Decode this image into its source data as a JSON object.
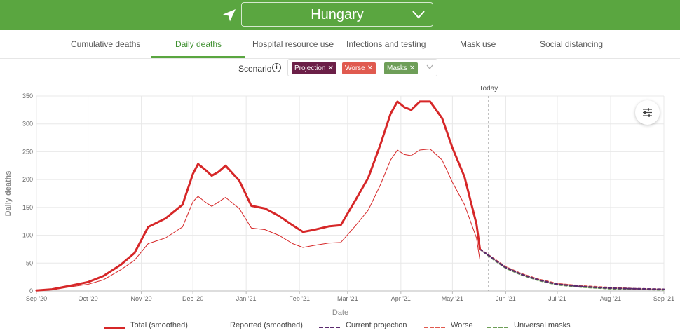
{
  "header": {
    "country": "Hungary",
    "background": "#5aa640"
  },
  "tabs": [
    {
      "label": "Cumulative deaths",
      "active": false
    },
    {
      "label": "Daily deaths",
      "active": true
    },
    {
      "label": "Hospital resource use",
      "active": false
    },
    {
      "label": "Infections and testing",
      "active": false
    },
    {
      "label": "Mask use",
      "active": false
    },
    {
      "label": "Social distancing",
      "active": false
    }
  ],
  "scenario": {
    "label": "Scenario",
    "chips": [
      {
        "label": "Projection",
        "color": "#6b1f47"
      },
      {
        "label": "Worse",
        "color": "#e05a4f"
      },
      {
        "label": "Masks",
        "color": "#6e9e58"
      }
    ]
  },
  "chart_data": {
    "type": "line",
    "xlabel": "Date",
    "ylabel": "Daily deaths",
    "ylim": [
      0,
      350
    ],
    "yticks": [
      0,
      50,
      100,
      150,
      200,
      250,
      300,
      350
    ],
    "xticks": [
      "Sep '20",
      "Oct '20",
      "Nov '20",
      "Dec '20",
      "Jan '21",
      "Feb '21",
      "Mar '21",
      "Apr '21",
      "May '21",
      "Jun '21",
      "Jul '21",
      "Aug '21",
      "Sep '21"
    ],
    "xrange": [
      "2020-09-01",
      "2021-09-01"
    ],
    "today": {
      "label": "Today",
      "date": "2021-05-22"
    },
    "grid": true,
    "legend_position": "bottom",
    "series": [
      {
        "name": "Total (smoothed)",
        "color": "#d62728",
        "style": "thick",
        "x": [
          "2020-09-01",
          "2020-09-10",
          "2020-09-20",
          "2020-10-01",
          "2020-10-10",
          "2020-10-20",
          "2020-10-28",
          "2020-11-05",
          "2020-11-15",
          "2020-11-25",
          "2020-12-01",
          "2020-12-04",
          "2020-12-08",
          "2020-12-12",
          "2020-12-16",
          "2020-12-20",
          "2020-12-28",
          "2021-01-04",
          "2021-01-12",
          "2021-01-20",
          "2021-01-28",
          "2021-02-03",
          "2021-02-10",
          "2021-02-18",
          "2021-02-25",
          "2021-03-05",
          "2021-03-13",
          "2021-03-20",
          "2021-03-26",
          "2021-03-30",
          "2021-04-03",
          "2021-04-07",
          "2021-04-12",
          "2021-04-18",
          "2021-04-25",
          "2021-05-01",
          "2021-05-08",
          "2021-05-15",
          "2021-05-17"
        ],
        "y": [
          1,
          3,
          9,
          16,
          27,
          47,
          68,
          115,
          130,
          155,
          210,
          228,
          218,
          207,
          214,
          225,
          198,
          153,
          148,
          135,
          118,
          106,
          110,
          116,
          118,
          160,
          203,
          262,
          318,
          340,
          330,
          325,
          340,
          340,
          310,
          257,
          205,
          120,
          75
        ]
      },
      {
        "name": "Reported (smoothed)",
        "color": "#d62728",
        "style": "thin",
        "x": [
          "2020-09-01",
          "2020-09-10",
          "2020-09-20",
          "2020-10-01",
          "2020-10-10",
          "2020-10-20",
          "2020-10-28",
          "2020-11-05",
          "2020-11-15",
          "2020-11-25",
          "2020-12-01",
          "2020-12-04",
          "2020-12-08",
          "2020-12-12",
          "2020-12-16",
          "2020-12-20",
          "2020-12-28",
          "2021-01-04",
          "2021-01-12",
          "2021-01-20",
          "2021-01-28",
          "2021-02-03",
          "2021-02-10",
          "2021-02-18",
          "2021-02-25",
          "2021-03-05",
          "2021-03-13",
          "2021-03-20",
          "2021-03-26",
          "2021-03-30",
          "2021-04-03",
          "2021-04-07",
          "2021-04-12",
          "2021-04-18",
          "2021-04-25",
          "2021-05-01",
          "2021-05-08",
          "2021-05-15",
          "2021-05-17"
        ],
        "y": [
          1,
          2,
          7,
          12,
          20,
          38,
          55,
          85,
          95,
          115,
          160,
          170,
          160,
          152,
          160,
          168,
          148,
          113,
          110,
          100,
          85,
          78,
          82,
          86,
          87,
          115,
          145,
          190,
          235,
          253,
          245,
          243,
          253,
          255,
          235,
          195,
          155,
          95,
          55
        ]
      },
      {
        "name": "Current projection",
        "color": "#5a2a6e",
        "style": "dashed",
        "x": [
          "2021-05-17",
          "2021-05-25",
          "2021-06-01",
          "2021-06-10",
          "2021-06-20",
          "2021-07-01",
          "2021-07-15",
          "2021-08-01",
          "2021-08-15",
          "2021-09-01"
        ],
        "y": [
          75,
          57,
          42,
          30,
          20,
          12,
          8,
          5,
          4,
          3
        ]
      },
      {
        "name": "Worse",
        "color": "#e05a4f",
        "style": "dashed",
        "x": [
          "2021-05-17",
          "2021-05-25",
          "2021-06-01",
          "2021-06-10",
          "2021-06-20",
          "2021-07-01",
          "2021-07-15",
          "2021-08-01",
          "2021-08-15",
          "2021-09-01"
        ],
        "y": [
          75,
          58,
          43,
          31,
          21,
          13,
          9,
          6,
          4,
          3
        ]
      },
      {
        "name": "Universal masks",
        "color": "#6e9e58",
        "style": "dashed",
        "x": [
          "2021-05-17",
          "2021-05-25",
          "2021-06-01",
          "2021-06-10",
          "2021-06-20",
          "2021-07-01",
          "2021-07-15",
          "2021-08-01",
          "2021-08-15",
          "2021-09-01"
        ],
        "y": [
          75,
          56,
          41,
          29,
          19,
          11,
          7,
          4,
          3,
          2
        ]
      }
    ]
  }
}
